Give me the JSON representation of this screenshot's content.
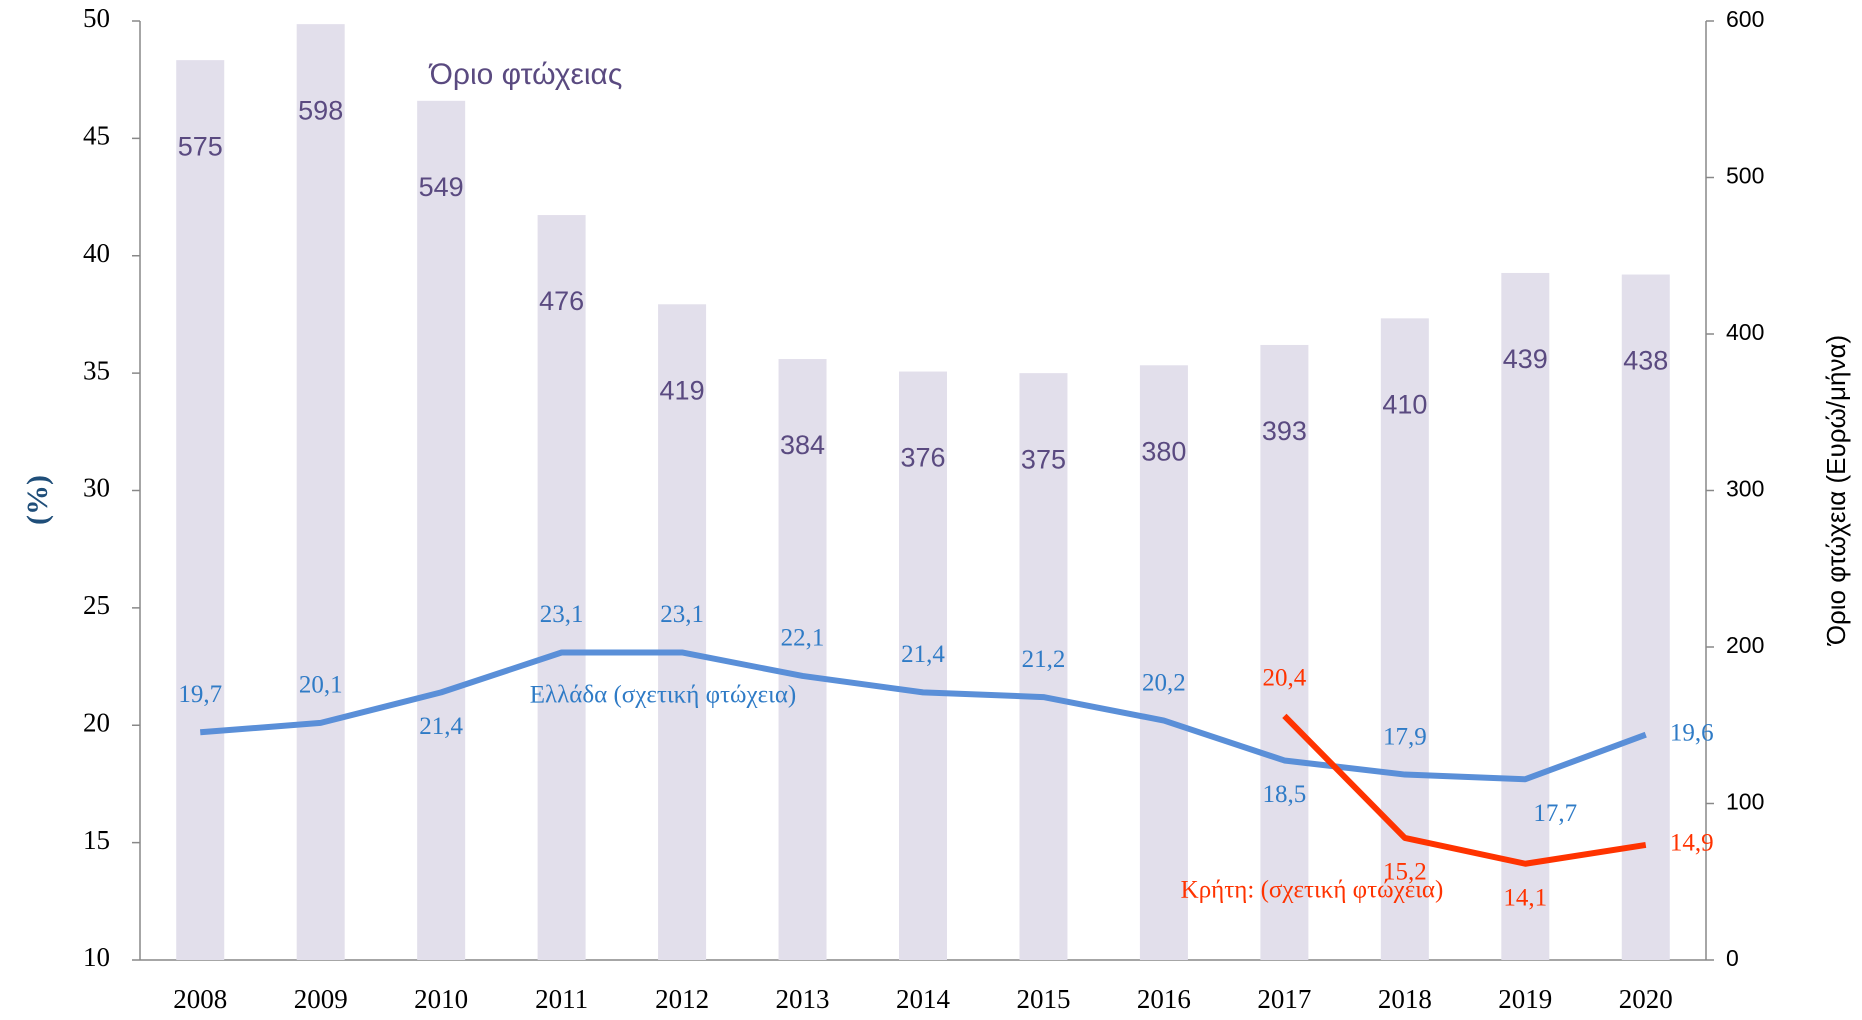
{
  "chart_data": {
    "type": "bar_line",
    "y_label": "(%)",
    "y2_label": "Όριο φτώχεια (Ευρώ/μήνα)",
    "categories": [
      "2008",
      "2009",
      "2010",
      "2011",
      "2012",
      "2013",
      "2014",
      "2015",
      "2016",
      "2017",
      "2018",
      "2019",
      "2020"
    ],
    "ylim": [
      10,
      50
    ],
    "yticks": [
      10,
      15,
      20,
      25,
      30,
      35,
      40,
      45,
      50
    ],
    "y2lim": [
      0,
      600
    ],
    "y2ticks": [
      0,
      100,
      200,
      300,
      400,
      500,
      600
    ],
    "series": [
      {
        "name": "Όριο φτώχειας",
        "type": "bar",
        "axis": "y2",
        "color": "#e2dfeb",
        "label_color": "#5a4a80",
        "values": [
          575,
          598,
          549,
          476,
          419,
          384,
          376,
          375,
          380,
          393,
          410,
          439,
          438
        ]
      },
      {
        "name": "Ελλάδα (σχετική φτώχεια)",
        "type": "line",
        "color": "#5a8fd8",
        "label_color": "#2f7bc6",
        "values": [
          19.7,
          20.1,
          21.4,
          23.1,
          23.1,
          22.1,
          21.4,
          21.2,
          20.2,
          18.5,
          17.9,
          17.7,
          19.6
        ],
        "value_labels": [
          "19,7",
          "20,1",
          "21,4",
          "23,1",
          "23,1",
          "22,1",
          "21,4",
          "21,2",
          "20,2",
          "18,5",
          "17,9",
          "17,7",
          "19,6"
        ]
      },
      {
        "name": "Κρήτη: (σχετική φτώχεια)",
        "type": "line",
        "color": "#ff3300",
        "label_color": "#ff3300",
        "values": [
          null,
          null,
          null,
          null,
          null,
          null,
          null,
          null,
          null,
          20.4,
          15.2,
          14.1,
          14.9
        ],
        "value_labels": [
          null,
          null,
          null,
          null,
          null,
          null,
          null,
          null,
          null,
          "20,4",
          "15,2",
          "14,1",
          "14,9"
        ]
      }
    ]
  }
}
